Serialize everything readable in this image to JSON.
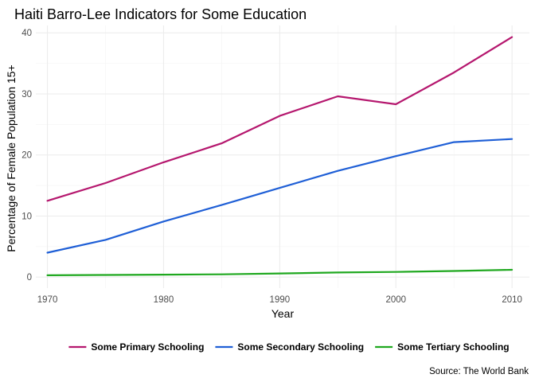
{
  "chart_data": {
    "type": "line",
    "title": "Haiti Barro-Lee Indicators for Some Education",
    "xlabel": "Year",
    "ylabel": "Percentage of Female Population 15+",
    "caption": "Source: The World Bank",
    "x": [
      1970,
      1975,
      1980,
      1985,
      1990,
      1995,
      2000,
      2005,
      2010
    ],
    "xticks": [
      1970,
      1980,
      1990,
      2000,
      2010
    ],
    "yticks": [
      0,
      10,
      20,
      30,
      40
    ],
    "xlim": [
      1969.0,
      2011.5
    ],
    "ylim": [
      -1.8,
      41.2
    ],
    "grid": true,
    "legend_position": "bottom",
    "series": [
      {
        "name": "Some Primary Schooling",
        "color": "#b5176e",
        "values": [
          12.5,
          15.4,
          18.8,
          21.9,
          26.4,
          29.6,
          28.3,
          33.5,
          39.3
        ]
      },
      {
        "name": "Some Secondary Schooling",
        "color": "#1f5fd6",
        "values": [
          4.0,
          6.1,
          9.1,
          11.8,
          14.6,
          17.4,
          19.8,
          22.1,
          22.6
        ]
      },
      {
        "name": "Some Tertiary Schooling",
        "color": "#1fa81f",
        "values": [
          0.3,
          0.35,
          0.4,
          0.45,
          0.6,
          0.75,
          0.85,
          1.0,
          1.2
        ]
      }
    ]
  }
}
